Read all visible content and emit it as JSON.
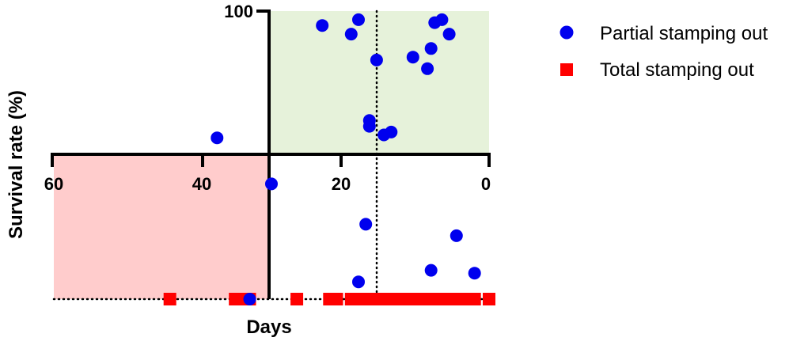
{
  "chart_data": {
    "type": "scatter",
    "xlabel": "Days",
    "ylabel": "Survival rate (%)",
    "x_reversed": true,
    "xlim": [
      0,
      60
    ],
    "ylim": [
      0,
      100
    ],
    "x_ticks": [
      60,
      40,
      20,
      0
    ],
    "y_ticks": [
      100
    ],
    "grid": false,
    "legend_position": "top-right",
    "region_good_color": "#e6f2da",
    "region_bad_color": "#ffcccc",
    "series": [
      {
        "name": "Partial stamping out",
        "marker": "circle",
        "color": "#0000ee",
        "points": [
          {
            "x": 23,
            "y": 95
          },
          {
            "x": 7.5,
            "y": 96
          },
          {
            "x": 6.5,
            "y": 97
          },
          {
            "x": 5.5,
            "y": 92
          },
          {
            "x": 8,
            "y": 87
          },
          {
            "x": 10.5,
            "y": 84
          },
          {
            "x": 16.5,
            "y": 60
          },
          {
            "x": 14.5,
            "y": 57
          },
          {
            "x": 13.5,
            "y": 58
          },
          {
            "x": 4.5,
            "y": 22
          },
          {
            "x": 8,
            "y": 10
          },
          {
            "x": 18,
            "y": 97
          },
          {
            "x": 19,
            "y": 92
          },
          {
            "x": 15.5,
            "y": 83
          },
          {
            "x": 8.5,
            "y": 80
          },
          {
            "x": 37.5,
            "y": 56
          },
          {
            "x": 16.5,
            "y": 62
          },
          {
            "x": 30,
            "y": 40
          },
          {
            "x": 17,
            "y": 26
          },
          {
            "x": 18,
            "y": 6
          },
          {
            "x": 2,
            "y": 9
          },
          {
            "x": 33,
            "y": 0
          }
        ]
      },
      {
        "name": "Total stamping out",
        "marker": "square",
        "color": "#ff0000",
        "points": [
          {
            "x": 44,
            "y": 0
          },
          {
            "x": 35,
            "y": 0
          },
          {
            "x": 34,
            "y": 0
          },
          {
            "x": 33,
            "y": 0
          },
          {
            "x": 26.5,
            "y": 0
          },
          {
            "x": 22,
            "y": 0
          },
          {
            "x": 21,
            "y": 0
          },
          {
            "x": 19,
            "y": 0
          },
          {
            "x": 18,
            "y": 0
          },
          {
            "x": 17,
            "y": 0
          },
          {
            "x": 16,
            "y": 0
          },
          {
            "x": 15,
            "y": 0
          },
          {
            "x": 14,
            "y": 0
          },
          {
            "x": 13,
            "y": 0
          },
          {
            "x": 12,
            "y": 0
          },
          {
            "x": 11,
            "y": 0
          },
          {
            "x": 10,
            "y": 0
          },
          {
            "x": 9,
            "y": 0
          },
          {
            "x": 8,
            "y": 0
          },
          {
            "x": 7,
            "y": 0
          },
          {
            "x": 6,
            "y": 0
          },
          {
            "x": 5,
            "y": 0
          },
          {
            "x": 4,
            "y": 0
          },
          {
            "x": 3,
            "y": 0
          },
          {
            "x": 2,
            "y": 0
          },
          {
            "x": 0,
            "y": 0
          }
        ]
      }
    ]
  }
}
